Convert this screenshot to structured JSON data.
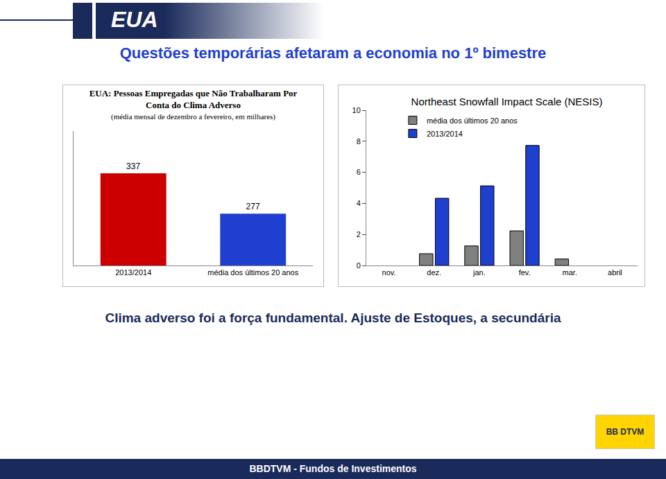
{
  "slide": {
    "header": "EUA",
    "title": "Questões temporárias afetaram a economia no 1º bimestre",
    "caption": "Clima adverso foi a força fundamental. Ajuste de Estoques, a secundária",
    "logo": "BB DTVM",
    "footer": "BBDTVM - Fundos de Investimentos"
  },
  "chart_data": [
    {
      "type": "bar",
      "title": "EUA: Pessoas Empregadas que Não Trabalharam Por Conta do Clima Adverso",
      "subtitle": "(média mensal de dezembro a fevereiro, em milhares)",
      "categories": [
        "2013/2014",
        "média dos últimos 20 anos"
      ],
      "values": [
        337,
        277
      ],
      "colors": [
        "#cc0000",
        "#1f3fcf"
      ],
      "ylim": [
        200,
        400
      ],
      "yticks": [],
      "tick_labels": "x",
      "data_labels": true,
      "grid": false
    },
    {
      "type": "bar",
      "title": "Northeast Snowfall Impact Scale (NESIS)",
      "categories": [
        "nov.",
        "dez.",
        "jan.",
        "fev.",
        "mar.",
        "abril"
      ],
      "series": [
        {
          "name": "média dos últimos 20 anos",
          "color": "#808080",
          "values": [
            null,
            0.76,
            1.26,
            2.23,
            0.42,
            null
          ]
        },
        {
          "name": "2013/2014",
          "color": "#1f3fcf",
          "values": [
            null,
            4.33,
            5.13,
            7.73,
            null,
            null
          ]
        }
      ],
      "ylim": [
        0,
        10
      ],
      "yticks": [
        0,
        2,
        4,
        6,
        8,
        10
      ],
      "legend": "top-left",
      "grid": false,
      "data_labels": false
    }
  ]
}
